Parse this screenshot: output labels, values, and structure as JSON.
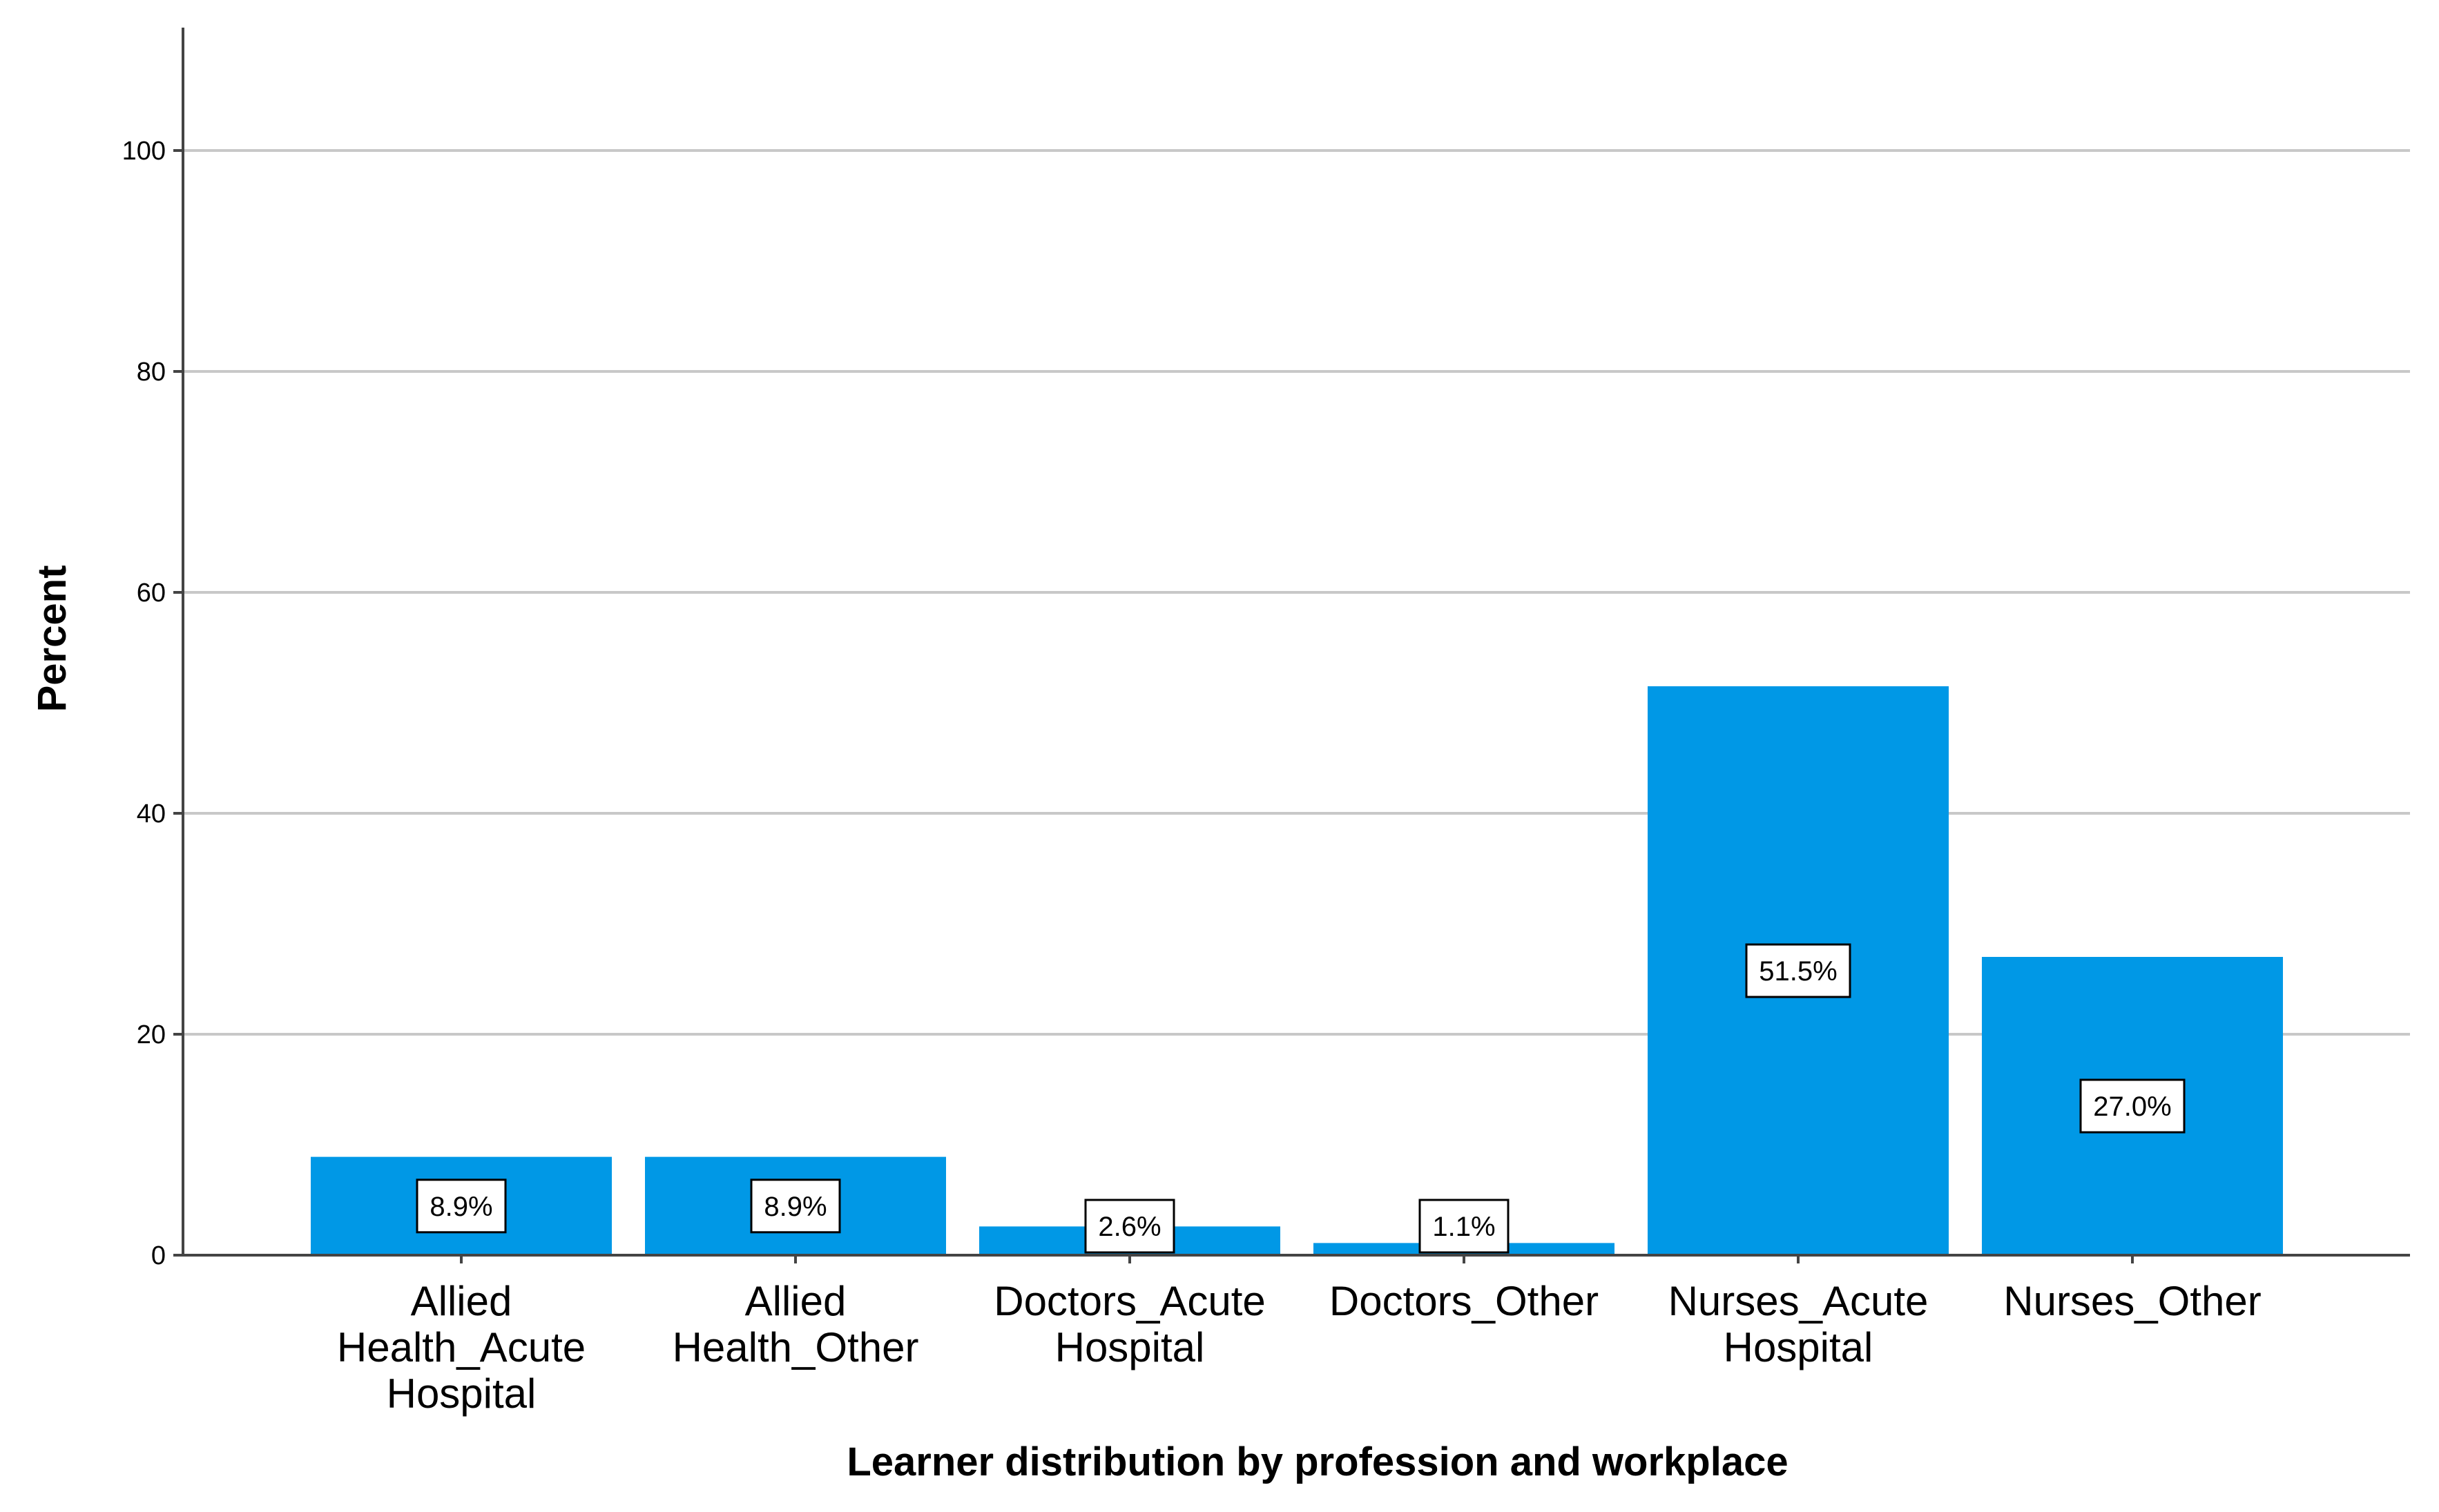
{
  "chart_data": {
    "type": "bar",
    "categories": [
      [
        "Allied",
        "Health_Acute",
        "Hospital"
      ],
      [
        "Allied",
        "Health_Other"
      ],
      [
        "Doctors_Acute",
        "Hospital"
      ],
      [
        "Doctors_Other"
      ],
      [
        "Nurses_Acute",
        "Hospital"
      ],
      [
        "Nurses_Other"
      ]
    ],
    "values": [
      8.9,
      8.9,
      2.6,
      1.1,
      51.5,
      27.0
    ],
    "data_labels": [
      "8.9%",
      "8.9%",
      "2.6%",
      "1.1%",
      "51.5%",
      "27.0%"
    ],
    "xlabel": "Learner distribution by profession and workplace",
    "ylabel": "Percent",
    "ylim": [
      0,
      110
    ],
    "yticks": [
      0,
      20,
      40,
      60,
      80,
      100
    ],
    "grid": true,
    "bar_color": "#0098e6",
    "legend": "none"
  }
}
